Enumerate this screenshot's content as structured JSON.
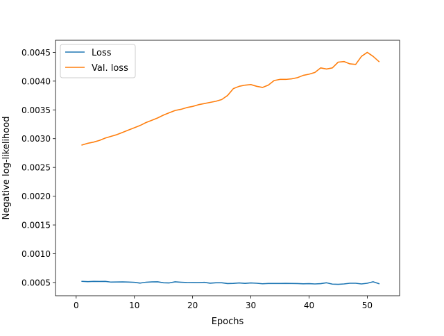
{
  "chart_data": {
    "type": "line",
    "title": "",
    "xlabel": "Epochs",
    "ylabel": "Negative log-likelihood",
    "xlim": [
      -3.55,
      55.55
    ],
    "ylim": [
      0.00027,
      0.00471
    ],
    "xticks": [
      0,
      10,
      20,
      30,
      40,
      50
    ],
    "xtick_labels": [
      "0",
      "10",
      "20",
      "30",
      "40",
      "50"
    ],
    "yticks": [
      0.0005,
      0.001,
      0.0015,
      0.002,
      0.0025,
      0.003,
      0.0035,
      0.004,
      0.0045
    ],
    "ytick_labels": [
      "0.0005",
      "0.0010",
      "0.0015",
      "0.0020",
      "0.0025",
      "0.0030",
      "0.0035",
      "0.0040",
      "0.0045"
    ],
    "grid": false,
    "legend_position": "top-left",
    "x": [
      1,
      2,
      3,
      4,
      5,
      6,
      7,
      8,
      9,
      10,
      11,
      12,
      13,
      14,
      15,
      16,
      17,
      18,
      19,
      20,
      21,
      22,
      23,
      24,
      25,
      26,
      27,
      28,
      29,
      30,
      31,
      32,
      33,
      34,
      35,
      36,
      37,
      38,
      39,
      40,
      41,
      42,
      43,
      44,
      45,
      46,
      47,
      48,
      49,
      50,
      51,
      52
    ],
    "series": [
      {
        "name": "Loss",
        "color": "#1f77b4",
        "values": [
          0.00052,
          0.000515,
          0.00052,
          0.000518,
          0.00052,
          0.000507,
          0.000509,
          0.00051,
          0.000508,
          0.000503,
          0.00049,
          0.000505,
          0.00051,
          0.000512,
          0.000495,
          0.000493,
          0.000512,
          0.000505,
          0.0005,
          0.000498,
          0.000497,
          0.000503,
          0.000488,
          0.000495,
          0.000495,
          0.000482,
          0.000485,
          0.000492,
          0.000485,
          0.000492,
          0.000487,
          0.000478,
          0.000483,
          0.000483,
          0.000483,
          0.000485,
          0.000483,
          0.000482,
          0.000477,
          0.00048,
          0.000475,
          0.00048,
          0.000495,
          0.000472,
          0.000468,
          0.000475,
          0.000487,
          0.000487,
          0.000475,
          0.000487,
          0.000513,
          0.00048
        ]
      },
      {
        "name": "Val. loss",
        "color": "#ff7f0e",
        "values": [
          0.00289,
          0.00292,
          0.00294,
          0.00297,
          0.00301,
          0.00304,
          0.00307,
          0.00311,
          0.00315,
          0.00319,
          0.00323,
          0.00328,
          0.00332,
          0.00336,
          0.00341,
          0.00345,
          0.00349,
          0.00351,
          0.00354,
          0.00356,
          0.00359,
          0.00361,
          0.00363,
          0.00365,
          0.00368,
          0.00375,
          0.00387,
          0.00391,
          0.00393,
          0.00394,
          0.00391,
          0.00389,
          0.00393,
          0.00401,
          0.00403,
          0.00403,
          0.00404,
          0.00406,
          0.0041,
          0.00412,
          0.00415,
          0.00423,
          0.00421,
          0.00423,
          0.00433,
          0.00434,
          0.0043,
          0.00429,
          0.00443,
          0.0045,
          0.00443,
          0.00434
        ]
      }
    ]
  }
}
